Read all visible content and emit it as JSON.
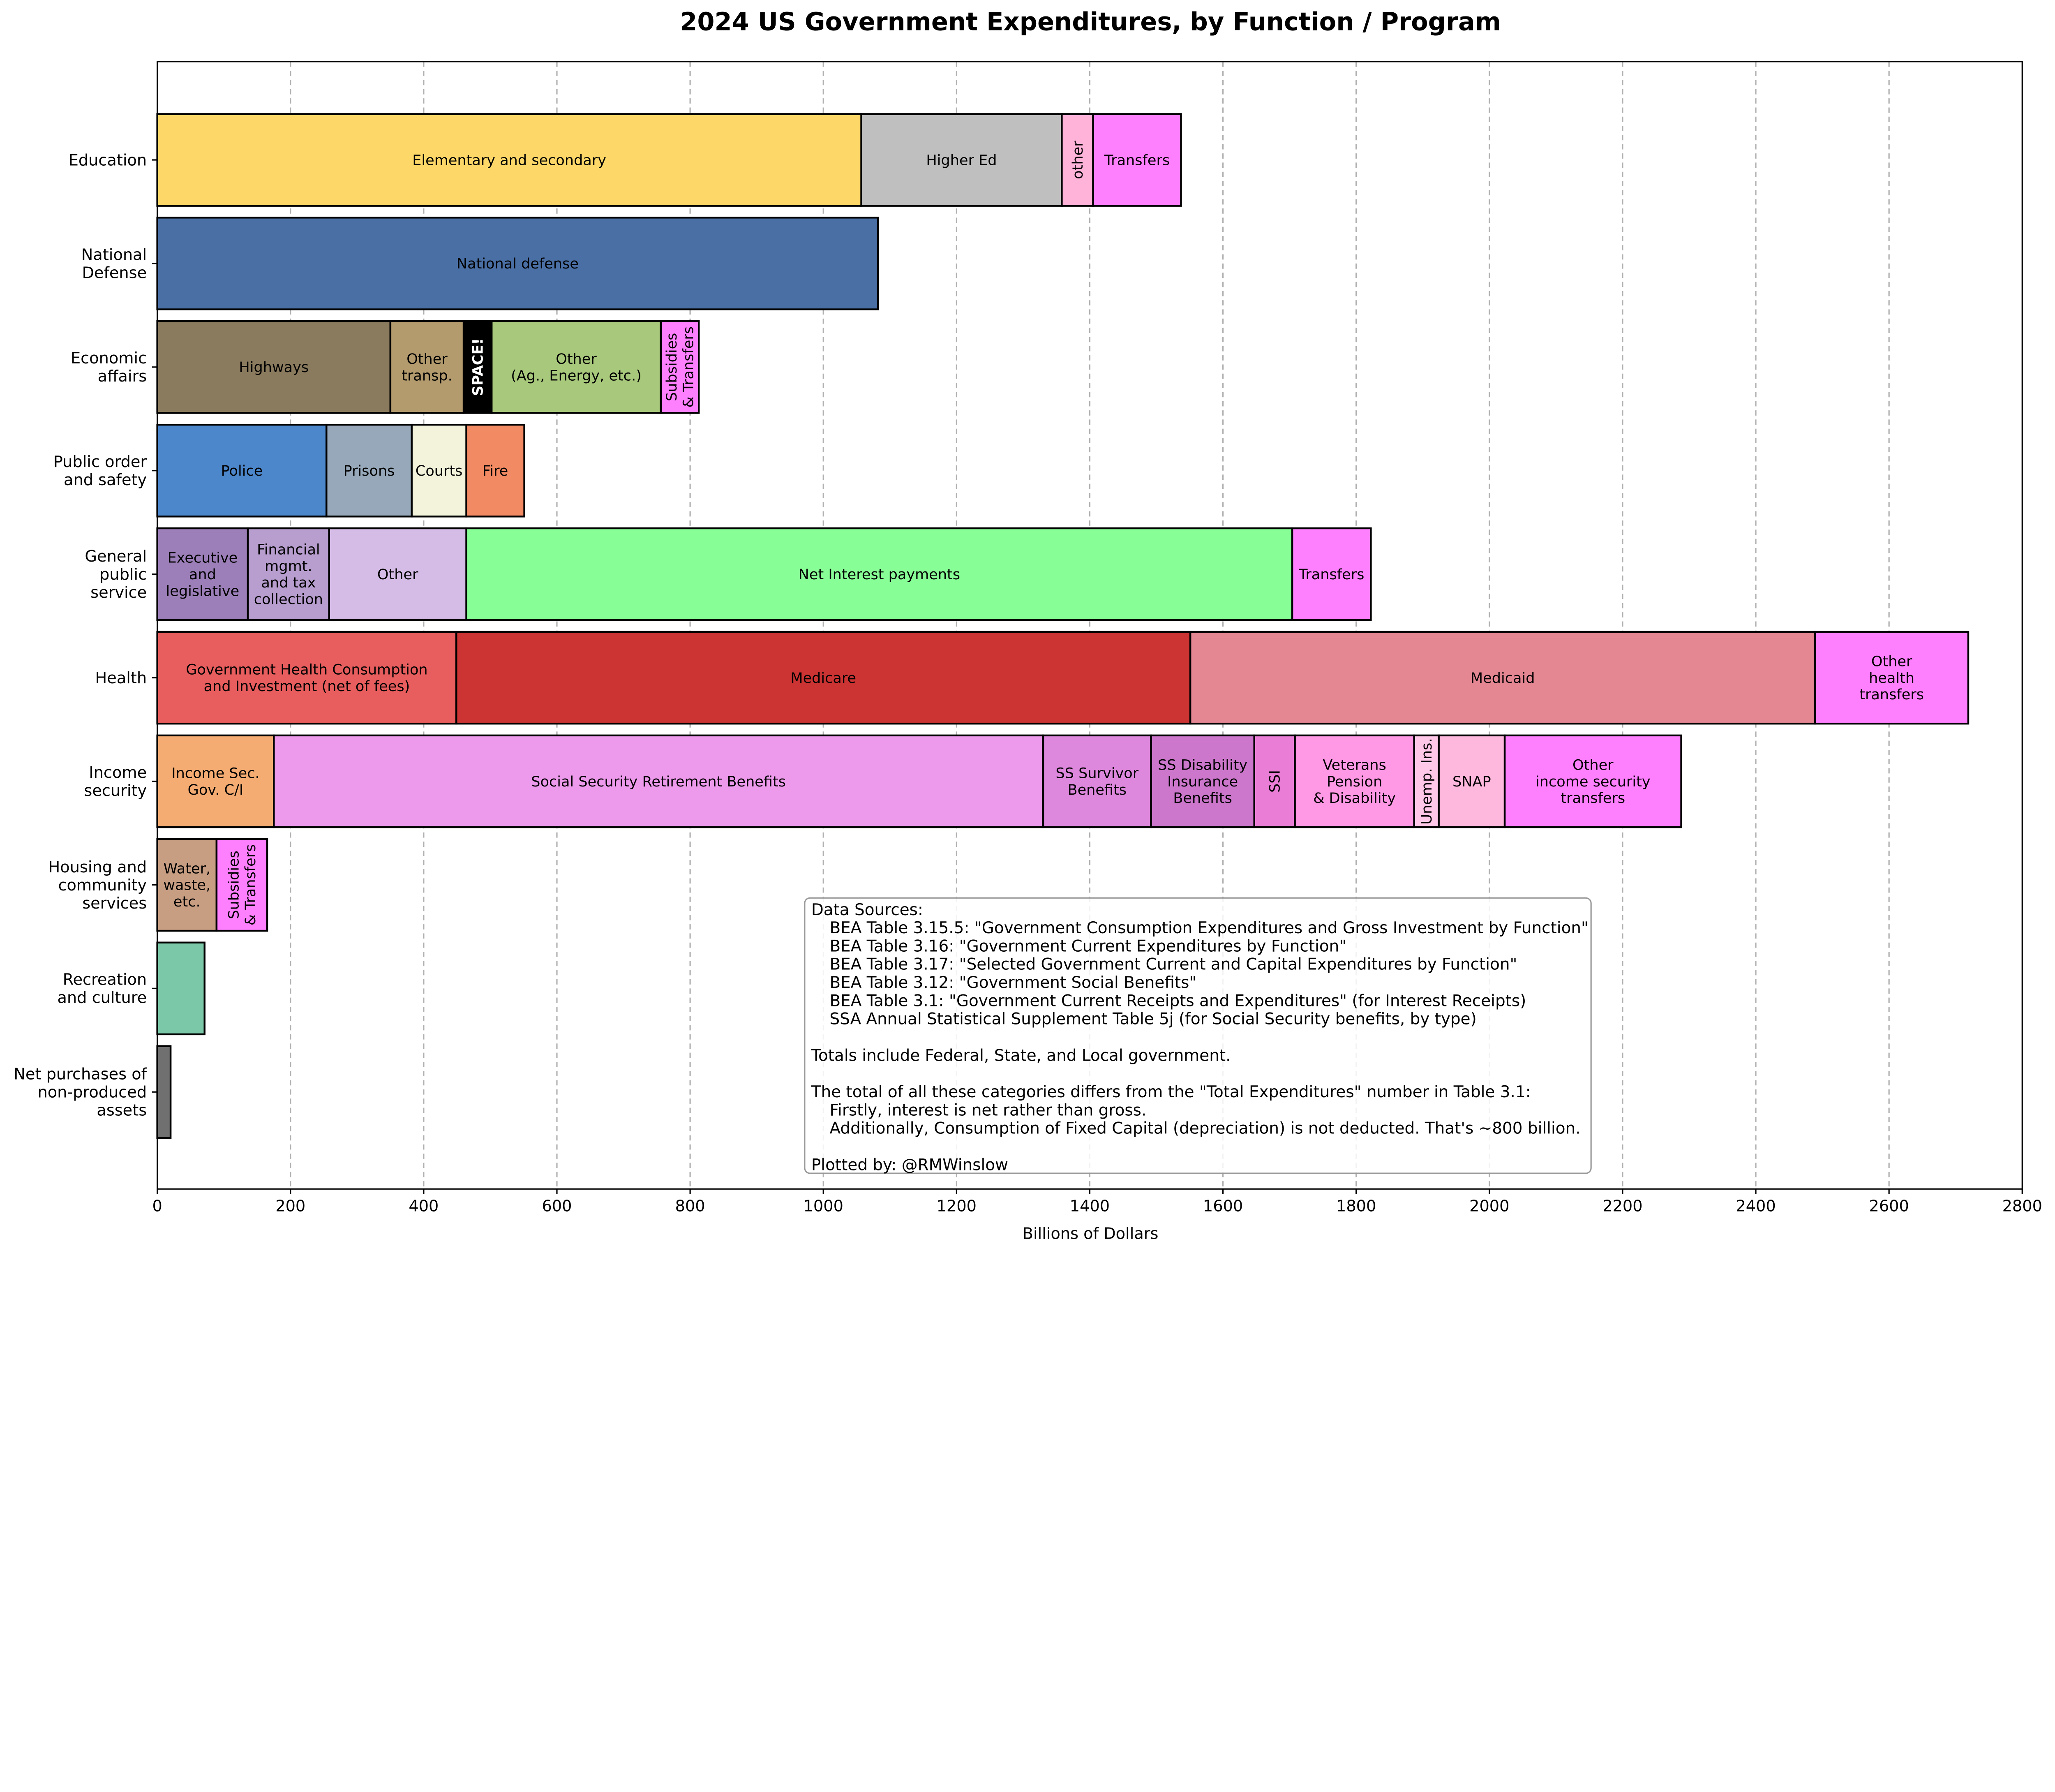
{
  "chart_data": {
    "type": "bar",
    "orientation": "horizontal",
    "stacked": true,
    "title": "2024 US Government Expenditures, by Function / Program",
    "xlabel": "Billions of Dollars",
    "ylabel": "",
    "xlim": [
      0,
      2800
    ],
    "xticks": [
      0,
      200,
      400,
      600,
      800,
      1000,
      1200,
      1400,
      1600,
      1800,
      2000,
      2200,
      2400,
      2600,
      2800
    ],
    "grid": "x dashed",
    "categories": [
      {
        "name": "Education",
        "segments": [
          {
            "label": "Elementary and secondary",
            "value": 1057,
            "color": "#fdd868"
          },
          {
            "label": "Higher Ed",
            "value": 301,
            "color": "#bfbfbf"
          },
          {
            "label": "other",
            "value": 47,
            "color": "#ffb3d9",
            "vertical": true
          },
          {
            "label": "Transfers",
            "value": 132,
            "color": "#ff80ff"
          }
        ]
      },
      {
        "name": "National\nDefense",
        "segments": [
          {
            "label": "National defense",
            "value": 1082,
            "color": "#4a6fa5"
          }
        ]
      },
      {
        "name": "Economic\naffairs",
        "segments": [
          {
            "label": "Highways",
            "value": 350,
            "color": "#8b7b5e"
          },
          {
            "label": "Other\ntransp.",
            "value": 110,
            "color": "#b39b6e"
          },
          {
            "label": "SPACE!",
            "value": 42,
            "color": "#000000",
            "vertical": true,
            "bold": true,
            "textColor": "#ffffff"
          },
          {
            "label": "Other\n(Ag., Energy, etc.)",
            "value": 254,
            "color": "#a8c87c"
          },
          {
            "label": "Subsidies\n& Transfers",
            "value": 57,
            "color": "#ff80ff",
            "vertical": true
          }
        ]
      },
      {
        "name": "Public order\nand safety",
        "segments": [
          {
            "label": "Police",
            "value": 254,
            "color": "#4c86cb"
          },
          {
            "label": "Prisons",
            "value": 128,
            "color": "#96a8b9"
          },
          {
            "label": "Courts",
            "value": 82,
            "color": "#f3f3dc"
          },
          {
            "label": "Fire",
            "value": 87,
            "color": "#f28a63"
          }
        ]
      },
      {
        "name": "General\npublic\nservice",
        "segments": [
          {
            "label": "Executive\nand\nlegislative",
            "value": 136,
            "color": "#9c7fb8"
          },
          {
            "label": "Financial\nmgmt.\nand tax\ncollection",
            "value": 122,
            "color": "#b89dcf"
          },
          {
            "label": "Other",
            "value": 206,
            "color": "#d5bce6"
          },
          {
            "label": "Net Interest payments",
            "value": 1240,
            "color": "#88ff96"
          },
          {
            "label": "Transfers",
            "value": 118,
            "color": "#ff80ff"
          }
        ]
      },
      {
        "name": "Health",
        "segments": [
          {
            "label": "Government Health Consumption\nand Investment (net of fees)",
            "value": 449,
            "color": "#e85d5d"
          },
          {
            "label": "Medicare",
            "value": 1102,
            "color": "#cc3333"
          },
          {
            "label": "Medicaid",
            "value": 938,
            "color": "#e58693"
          },
          {
            "label": "Other\nhealth\ntransfers",
            "value": 230,
            "color": "#ff80ff"
          }
        ]
      },
      {
        "name": "Income\nsecurity",
        "segments": [
          {
            "label": "Income Sec.\nGov. C/I",
            "value": 175,
            "color": "#f4ac72"
          },
          {
            "label": "Social Security Retirement Benefits",
            "value": 1155,
            "color": "#ed9aec"
          },
          {
            "label": "SS Survivor\nBenefits",
            "value": 162,
            "color": "#dd88dd"
          },
          {
            "label": "SS Disability\nInsurance\nBenefits",
            "value": 155,
            "color": "#cc77cc"
          },
          {
            "label": "SSI",
            "value": 61,
            "color": "#ea7ed6",
            "vertical": true
          },
          {
            "label": "Veterans\nPension\n& Disability",
            "value": 179,
            "color": "#ff99e6"
          },
          {
            "label": "Unemp. Ins.",
            "value": 37,
            "color": "#ffc8e8",
            "vertical": true
          },
          {
            "label": "SNAP",
            "value": 99,
            "color": "#ffb8dd"
          },
          {
            "label": "Other\nincome security\ntransfers",
            "value": 265,
            "color": "#ff80ff"
          }
        ]
      },
      {
        "name": "Housing and\ncommunity\nservices",
        "segments": [
          {
            "label": "Water,\nwaste,\netc.",
            "value": 89,
            "color": "#c89e82"
          },
          {
            "label": "Subsidies\n& Transfers",
            "value": 76,
            "color": "#ff80ff",
            "vertical": true
          }
        ]
      },
      {
        "name": "Recreation\nand culture",
        "segments": [
          {
            "label": "",
            "value": 71,
            "color": "#7ac8a8"
          }
        ]
      },
      {
        "name": "Net purchases of\nnon-produced\nassets",
        "segments": [
          {
            "label": "",
            "value": 20,
            "color": "#707070"
          }
        ]
      }
    ],
    "annotation": [
      "Data Sources:",
      "    BEA Table 3.15.5: \"Government Consumption Expenditures and Gross Investment by Function\"",
      "    BEA Table 3.16: \"Government Current Expenditures by Function\"",
      "    BEA Table 3.17: \"Selected Government Current and Capital Expenditures by Function\"",
      "    BEA Table 3.12: \"Government Social Benefits\"",
      "    BEA Table 3.1: \"Government Current Receipts and Expenditures\" (for Interest Receipts)",
      "    SSA Annual Statistical Supplement Table 5j (for Social Security benefits, by type)",
      "",
      "Totals include Federal, State, and Local government.",
      "",
      "The total of all these categories differs from the \"Total Expenditures\" number in Table 3.1:",
      "    Firstly, interest is net rather than gross.",
      "    Additionally, Consumption of Fixed Capital (depreciation) is not deducted. That's ~800 billion.",
      "",
      "Plotted by: @RMWinslow"
    ]
  }
}
